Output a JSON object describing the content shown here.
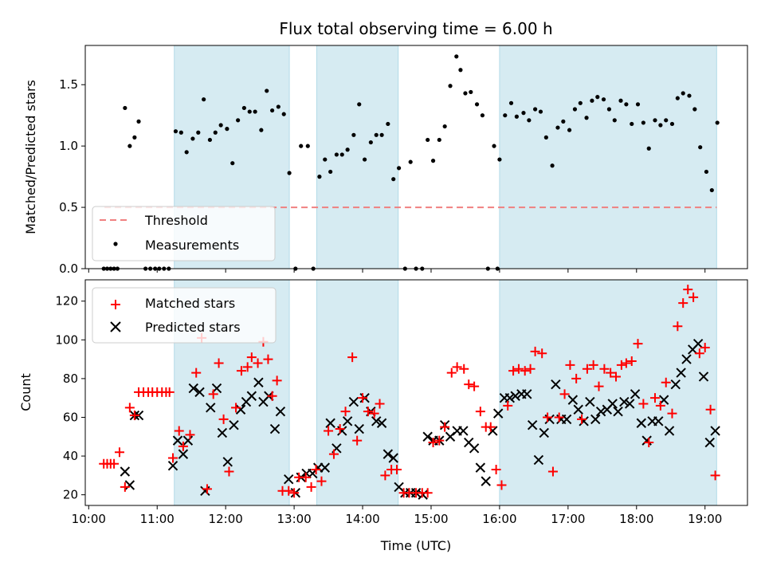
{
  "chart_data": [
    {
      "type": "scatter",
      "title": "Flux total observing time = 6.00 h",
      "ylabel": "Matched/Predicted stars",
      "xlim": [
        9.95,
        19.62
      ],
      "ylim": [
        0,
        1.82
      ],
      "yticks": [
        "0.0",
        "0.5",
        "1.0",
        "1.5"
      ],
      "ytick_values": [
        0,
        0.5,
        1.0,
        1.5
      ],
      "shaded_intervals": [
        [
          11.25,
          12.93
        ],
        [
          13.33,
          14.52
        ],
        [
          16.0,
          19.17
        ]
      ],
      "threshold": {
        "name": "Threshold",
        "value": 0.5,
        "x": [
          10.23,
          19.17
        ],
        "color": "#f08080"
      },
      "legend": {
        "placement": "lower-left"
      },
      "series": [
        {
          "name": "Measurements",
          "color": "#000000",
          "x": [
            10.22,
            10.27,
            10.32,
            10.37,
            10.42,
            10.53,
            10.6,
            10.67,
            10.73,
            10.83,
            10.9,
            10.97,
            11.03,
            11.1,
            11.17,
            11.27,
            11.35,
            11.43,
            11.52,
            11.6,
            11.68,
            11.77,
            11.85,
            11.93,
            12.02,
            12.1,
            12.18,
            12.27,
            12.35,
            12.43,
            12.52,
            12.6,
            12.68,
            12.77,
            12.85,
            12.93,
            13.02,
            13.1,
            13.2,
            13.28,
            13.37,
            13.45,
            13.53,
            13.62,
            13.7,
            13.78,
            13.87,
            13.95,
            14.03,
            14.12,
            14.2,
            14.28,
            14.37,
            14.45,
            14.53,
            14.62,
            14.7,
            14.78,
            14.87,
            14.95,
            15.03,
            15.12,
            15.2,
            15.28,
            15.37,
            15.43,
            15.5,
            15.58,
            15.67,
            15.75,
            15.83,
            15.92,
            15.97,
            16.0,
            16.08,
            16.17,
            16.25,
            16.35,
            16.43,
            16.52,
            16.6,
            16.68,
            16.77,
            16.85,
            16.93,
            17.02,
            17.1,
            17.18,
            17.27,
            17.35,
            17.43,
            17.52,
            17.6,
            17.68,
            17.77,
            17.85,
            17.93,
            18.02,
            18.1,
            18.18,
            18.27,
            18.35,
            18.43,
            18.52,
            18.6,
            18.68,
            18.77,
            18.85,
            18.93,
            19.02,
            19.1,
            19.18
          ],
          "y": [
            0,
            0,
            0,
            0,
            0,
            1.31,
            1.0,
            1.07,
            1.2,
            0,
            0,
            0,
            0,
            0,
            0,
            1.12,
            1.11,
            0.95,
            1.06,
            1.11,
            1.38,
            1.05,
            1.11,
            1.17,
            1.14,
            0.86,
            1.21,
            1.31,
            1.28,
            1.28,
            1.13,
            1.45,
            1.29,
            1.32,
            1.26,
            0.78,
            0,
            1.0,
            1.0,
            0,
            0.75,
            0.89,
            0.79,
            0.93,
            0.93,
            0.97,
            1.09,
            1.34,
            0.89,
            1.03,
            1.09,
            1.09,
            1.18,
            0.73,
            0.82,
            0,
            0.87,
            0,
            0,
            1.05,
            0.88,
            1.05,
            1.16,
            1.49,
            1.73,
            1.62,
            1.43,
            1.44,
            1.34,
            1.25,
            0,
            1.0,
            0,
            0.89,
            1.25,
            1.35,
            1.24,
            1.27,
            1.21,
            1.3,
            1.28,
            1.07,
            0.84,
            1.15,
            1.2,
            1.13,
            1.3,
            1.35,
            1.23,
            1.37,
            1.4,
            1.38,
            1.3,
            1.21,
            1.37,
            1.34,
            1.18,
            1.34,
            1.19,
            0.98,
            1.21,
            1.17,
            1.21,
            1.18,
            1.39,
            1.43,
            1.41,
            1.3,
            0.99,
            0.79,
            0.64,
            1.19
          ]
        }
      ]
    },
    {
      "type": "scatter",
      "xlabel": "Time (UTC)",
      "ylabel": "Count",
      "xlim": [
        9.95,
        19.62
      ],
      "ylim": [
        14.5,
        131
      ],
      "xticks": [
        "10:00",
        "11:00",
        "12:00",
        "13:00",
        "14:00",
        "15:00",
        "16:00",
        "17:00",
        "18:00",
        "19:00"
      ],
      "xtick_values": [
        10,
        11,
        12,
        13,
        14,
        15,
        16,
        17,
        18,
        19
      ],
      "yticks": [
        "20",
        "40",
        "60",
        "80",
        "100",
        "120"
      ],
      "ytick_values": [
        20,
        40,
        60,
        80,
        100,
        120
      ],
      "shaded_intervals": [
        [
          11.25,
          12.93
        ],
        [
          13.33,
          14.52
        ],
        [
          16.0,
          19.17
        ]
      ],
      "legend": {
        "placement": "upper-left"
      },
      "series": [
        {
          "name": "Matched stars",
          "marker": "plus",
          "color": "#ff0000",
          "x": [
            10.22,
            10.27,
            10.32,
            10.37,
            10.45,
            10.53,
            10.6,
            10.67,
            10.73,
            10.8,
            10.87,
            10.93,
            11.0,
            11.07,
            11.13,
            11.18,
            11.23,
            11.32,
            11.38,
            11.48,
            11.57,
            11.65,
            11.73,
            11.82,
            11.9,
            11.97,
            12.05,
            12.15,
            12.23,
            12.32,
            12.38,
            12.47,
            12.55,
            12.62,
            12.68,
            12.75,
            12.83,
            12.92,
            13.0,
            13.07,
            13.17,
            13.25,
            13.32,
            13.4,
            13.5,
            13.58,
            13.67,
            13.75,
            13.85,
            13.92,
            14.0,
            14.08,
            14.17,
            14.25,
            14.33,
            14.42,
            14.5,
            14.6,
            14.68,
            14.78,
            14.87,
            14.95,
            15.03,
            15.12,
            15.2,
            15.3,
            15.38,
            15.48,
            15.55,
            15.63,
            15.72,
            15.8,
            15.87,
            15.95,
            16.03,
            16.12,
            16.2,
            16.28,
            16.37,
            16.45,
            16.52,
            16.62,
            16.7,
            16.78,
            16.87,
            16.95,
            17.03,
            17.12,
            17.2,
            17.28,
            17.37,
            17.45,
            17.53,
            17.62,
            17.7,
            17.78,
            17.85,
            17.93,
            18.02,
            18.1,
            18.18,
            18.27,
            18.35,
            18.43,
            18.52,
            18.6,
            18.68,
            18.75,
            18.83,
            18.92,
            19.0,
            19.08,
            19.15
          ],
          "y": [
            36,
            36,
            36,
            36,
            42,
            24,
            65,
            61,
            73,
            73,
            73,
            73,
            73,
            73,
            73,
            73,
            39,
            53,
            45,
            51,
            83,
            101,
            23,
            72,
            88,
            59,
            32,
            65,
            84,
            86,
            91,
            88,
            99,
            90,
            71,
            79,
            22,
            22,
            21,
            29,
            29,
            24,
            33,
            27,
            53,
            41,
            54,
            63,
            91,
            48,
            70,
            63,
            62,
            67,
            30,
            33,
            33,
            21,
            21,
            21,
            21,
            21,
            47,
            48,
            55,
            83,
            86,
            85,
            77,
            76,
            63,
            55,
            55,
            33,
            25,
            66,
            84,
            85,
            84,
            85,
            94,
            93,
            60,
            32,
            60,
            72,
            87,
            80,
            59,
            85,
            87,
            76,
            85,
            83,
            81,
            87,
            88,
            89,
            98,
            67,
            47,
            70,
            66,
            78,
            62,
            107,
            119,
            126,
            122,
            93,
            96,
            64,
            30
          ]
        },
        {
          "name": "Predicted stars",
          "marker": "x",
          "color": "#000000",
          "x": [
            10.53,
            10.6,
            10.67,
            10.73,
            11.23,
            11.3,
            11.38,
            11.45,
            11.53,
            11.62,
            11.7,
            11.78,
            11.87,
            11.95,
            12.03,
            12.12,
            12.22,
            12.3,
            12.38,
            12.48,
            12.55,
            12.63,
            12.72,
            12.8,
            12.92,
            13.02,
            13.1,
            13.18,
            13.27,
            13.35,
            13.45,
            13.53,
            13.62,
            13.7,
            13.78,
            13.87,
            13.95,
            14.03,
            14.12,
            14.2,
            14.28,
            14.37,
            14.45,
            14.53,
            14.62,
            14.7,
            14.78,
            14.88,
            14.95,
            15.03,
            15.12,
            15.2,
            15.28,
            15.38,
            15.47,
            15.55,
            15.63,
            15.72,
            15.8,
            15.9,
            15.98,
            16.07,
            16.15,
            16.23,
            16.32,
            16.4,
            16.48,
            16.57,
            16.65,
            16.73,
            16.82,
            16.9,
            16.98,
            17.07,
            17.15,
            17.23,
            17.32,
            17.4,
            17.48,
            17.57,
            17.65,
            17.73,
            17.82,
            17.9,
            17.98,
            18.07,
            18.15,
            18.23,
            18.32,
            18.4,
            18.48,
            18.57,
            18.65,
            18.73,
            18.82,
            18.9,
            18.98,
            19.07,
            19.15
          ],
          "y": [
            32,
            25,
            61,
            61,
            35,
            48,
            41,
            48,
            75,
            73,
            22,
            65,
            75,
            52,
            37,
            56,
            64,
            68,
            71,
            78,
            68,
            71,
            54,
            63,
            28,
            21,
            29,
            31,
            31,
            34,
            34,
            57,
            44,
            53,
            58,
            68,
            54,
            70,
            63,
            58,
            57,
            41,
            39,
            24,
            21,
            21,
            21,
            20,
            50,
            48,
            48,
            56,
            50,
            53,
            53,
            47,
            44,
            34,
            27,
            53,
            62,
            70,
            70,
            71,
            72,
            72,
            56,
            38,
            52,
            59,
            77,
            59,
            59,
            69,
            64,
            58,
            68,
            59,
            63,
            64,
            67,
            63,
            68,
            67,
            72,
            57,
            48,
            58,
            58,
            69,
            53,
            77,
            83,
            90,
            95,
            98,
            81,
            47,
            53
          ]
        }
      ]
    }
  ]
}
